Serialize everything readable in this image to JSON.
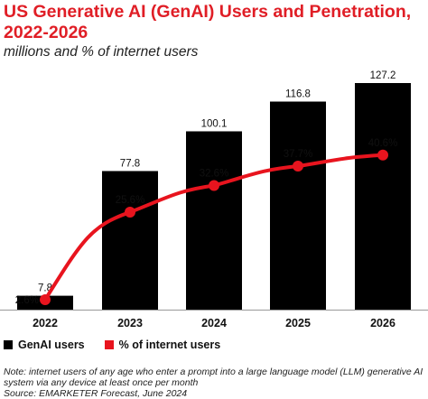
{
  "title": "US Generative AI (GenAI) Users and Penetration, 2022-2026",
  "subtitle": "millions and % of internet users",
  "colors": {
    "title": "#e01e26",
    "bars": "#000000",
    "line": "#e8141e"
  },
  "legend": {
    "bars_label": "GenAI users",
    "line_label": "% of internet users"
  },
  "note": "Note: internet users of any age who enter a prompt into a large language model (LLM) generative AI system via any device at least once per month",
  "source": "Source: EMARKETER Forecast, June 2024",
  "chart_data": {
    "type": "bar",
    "categories": [
      "2022",
      "2023",
      "2024",
      "2025",
      "2026"
    ],
    "series": [
      {
        "name": "GenAI users",
        "type": "bar",
        "values": [
          7.8,
          77.8,
          100.1,
          116.8,
          127.2
        ],
        "labels": [
          "7.8",
          "77.8",
          "100.1",
          "116.8",
          "127.2"
        ]
      },
      {
        "name": "% of internet users",
        "type": "line",
        "values": [
          2.6,
          25.6,
          32.6,
          37.7,
          40.6
        ],
        "labels": [
          "2.6%",
          "25.6%",
          "32.6%",
          "37.7%",
          "40.6%"
        ]
      }
    ],
    "bar_ylim": [
      0,
      130
    ],
    "line_ylim": [
      0,
      60
    ],
    "grid": false,
    "legend_position": "bottom-left"
  }
}
